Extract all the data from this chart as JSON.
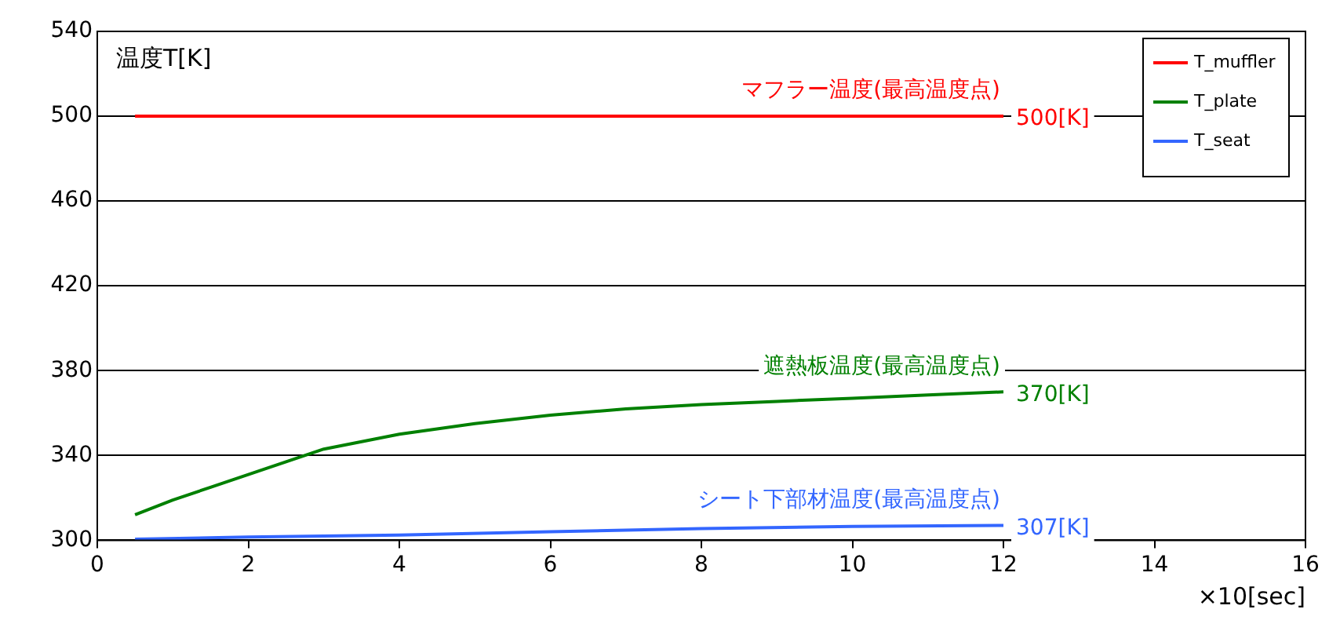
{
  "chart_data": {
    "type": "line",
    "ylabel": "温度T[K]",
    "xlabel": "×10[sec]",
    "xlim": [
      0,
      16
    ],
    "xticks": [
      0,
      2,
      4,
      6,
      8,
      10,
      12,
      14,
      16
    ],
    "ylim": [
      300,
      540
    ],
    "yticks": [
      300,
      340,
      380,
      420,
      460,
      500,
      540
    ],
    "grid": "y",
    "legend": "top right",
    "marker": "none",
    "line_style": "solid",
    "series": [
      {
        "name": "T_muffler",
        "color": "#ff0000",
        "x": [
          0.5,
          2,
          4,
          6,
          8,
          10,
          12
        ],
        "values": [
          500,
          500,
          500,
          500,
          500,
          500,
          500
        ]
      },
      {
        "name": "T_plate",
        "color": "#008000",
        "x": [
          0.5,
          1,
          1.5,
          2,
          2.5,
          3,
          4,
          5,
          6,
          7,
          8,
          9,
          10,
          11,
          12
        ],
        "values": [
          312,
          319,
          325,
          331,
          337,
          343,
          350,
          355,
          359,
          362,
          364,
          365.5,
          367,
          368.5,
          370
        ]
      },
      {
        "name": "T_seat",
        "color": "#3366ff",
        "x": [
          0.5,
          2,
          4,
          6,
          8,
          10,
          12
        ],
        "values": [
          300.5,
          301.5,
          302.5,
          304,
          305.5,
          306.5,
          307
        ]
      }
    ],
    "annotations": [
      "マフラー温度(最高温度点)",
      "500[K]",
      "遮熱板温度(最高温度点)",
      "370[K]",
      "シート下部材温度(最高温度点)",
      "307[K]"
    ]
  }
}
